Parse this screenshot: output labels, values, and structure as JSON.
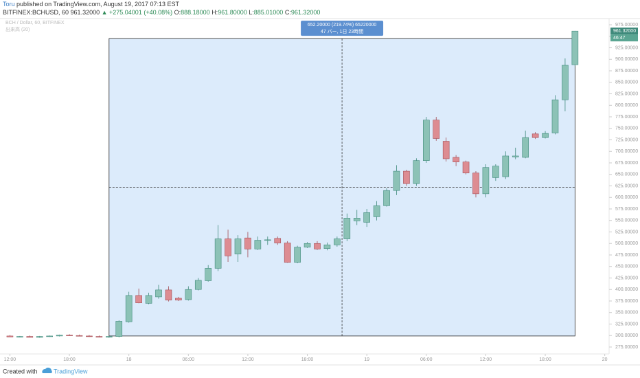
{
  "header": {
    "author": "Toru",
    "byline": "published on TradingView.com, August 19, 2017 07:13 EST",
    "symbol": "BITFINEX:BCHUSD, 60",
    "price": "961.32000",
    "change": "▲ +275.04001 (+40.08%)",
    "ohlc": [
      {
        "label": "O:",
        "value": "888.18000"
      },
      {
        "label": "H:",
        "value": "961.80000"
      },
      {
        "label": "L:",
        "value": "885.01000"
      },
      {
        "label": "C:",
        "value": "961.32000"
      }
    ]
  },
  "legend": {
    "series": "BCH / Dollar, 60, BITFINEX",
    "volume": "出来高 (20)"
  },
  "measure": {
    "line1": "652.20000 (219.74%) 65220000",
    "line2": "47 バー, 1日 23時間",
    "x": [
      10,
      57
    ],
    "y": [
      299,
      945
    ]
  },
  "price_tag": "961.32000",
  "countdown": "46:47",
  "footer": {
    "created": "Created with",
    "brand": "TradingView"
  },
  "chart_data": {
    "type": "candlestick",
    "up_color": "#8cc2b6",
    "up_stroke": "#3f8a7b",
    "down_color": "#dd8c92",
    "down_stroke": "#a34a52",
    "x": [
      0,
      1,
      2,
      3,
      4,
      5,
      6,
      7,
      8,
      9,
      10,
      11,
      12,
      13,
      14,
      15,
      16,
      17,
      18,
      19,
      20,
      21,
      22,
      23,
      24,
      25,
      26,
      27,
      28,
      29,
      30,
      31,
      32,
      33,
      34,
      35,
      36,
      37,
      38,
      39,
      40,
      41,
      42,
      43,
      44,
      45,
      46,
      47,
      48,
      49,
      50,
      51,
      52,
      53,
      54,
      55,
      56,
      57
    ],
    "open": [
      299,
      297,
      298,
      296,
      298,
      299,
      301,
      300,
      299,
      298,
      297,
      298,
      330,
      387,
      370,
      384,
      399,
      381,
      378,
      400,
      419,
      446,
      510,
      477,
      512,
      488,
      507,
      511,
      501,
      459,
      492,
      500,
      489,
      497,
      510,
      549,
      546,
      558,
      582,
      615,
      657,
      630,
      680,
      768,
      722,
      687,
      677,
      653,
      608,
      643,
      645,
      688,
      687,
      738,
      730,
      740,
      812,
      888.18
    ],
    "high": [
      301,
      299,
      300,
      299,
      300,
      302,
      303,
      302,
      301,
      300,
      299,
      333,
      395,
      402,
      393,
      410,
      407,
      384,
      407,
      425,
      453,
      540,
      530,
      518,
      525,
      515,
      515,
      515,
      505,
      495,
      503,
      505,
      502,
      515,
      565,
      573,
      575,
      592,
      620,
      670,
      660,
      685,
      775,
      775,
      730,
      692,
      680,
      657,
      672,
      672,
      700,
      708,
      745,
      742,
      744,
      822,
      902,
      961.8
    ],
    "low": [
      297,
      296,
      296,
      295,
      297,
      298,
      299,
      298,
      297,
      296,
      295,
      296,
      328,
      370,
      368,
      380,
      374,
      375,
      376,
      398,
      417,
      440,
      460,
      460,
      470,
      486,
      497,
      497,
      458,
      457,
      490,
      486,
      485,
      493,
      505,
      540,
      536,
      550,
      580,
      605,
      625,
      625,
      675,
      723,
      678,
      668,
      650,
      600,
      600,
      636,
      640,
      683,
      685,
      727,
      728,
      737,
      787,
      885.01
    ],
    "close": [
      297,
      298,
      296,
      298,
      299,
      301,
      300,
      299,
      298,
      297,
      298,
      331,
      387,
      371,
      387,
      399,
      377,
      377,
      400,
      420,
      446,
      510,
      473,
      510,
      488,
      507,
      508,
      501,
      459,
      492,
      500,
      488,
      497,
      510,
      555,
      555,
      567,
      582,
      615,
      657,
      630,
      680,
      768,
      728,
      684,
      677,
      653,
      608,
      665,
      668,
      690,
      690,
      730,
      730,
      739,
      812,
      887,
      961.32
    ],
    "xlim": [
      -1,
      60.3
    ],
    "ylim": [
      260,
      987
    ],
    "xticks": [
      {
        "value": 0,
        "label": "12:00"
      },
      {
        "value": 6,
        "label": "18:00"
      },
      {
        "value": 12,
        "label": "18"
      },
      {
        "value": 18,
        "label": "06:00"
      },
      {
        "value": 24,
        "label": "12:00"
      },
      {
        "value": 30,
        "label": "18:00"
      },
      {
        "value": 36,
        "label": "19"
      },
      {
        "value": 42,
        "label": "06:00"
      },
      {
        "value": 48,
        "label": "12:00"
      },
      {
        "value": 54,
        "label": "18:00"
      },
      {
        "value": 60,
        "label": "20"
      }
    ],
    "yticks": [
      {
        "value": 975,
        "label": "975.00000"
      },
      {
        "value": 950,
        "label": "950.00000"
      },
      {
        "value": 925,
        "label": "925.00000"
      },
      {
        "value": 900,
        "label": "900.00000"
      },
      {
        "value": 875,
        "label": "875.00000"
      },
      {
        "value": 850,
        "label": "850.00000"
      },
      {
        "value": 825,
        "label": "825.00000"
      },
      {
        "value": 800,
        "label": "800.00000"
      },
      {
        "value": 775,
        "label": "775.00000"
      },
      {
        "value": 750,
        "label": "750.00000"
      },
      {
        "value": 725,
        "label": "725.00000"
      },
      {
        "value": 700,
        "label": "700.00000"
      },
      {
        "value": 675,
        "label": "675.00000"
      },
      {
        "value": 650,
        "label": "650.00000"
      },
      {
        "value": 625,
        "label": "625.00000"
      },
      {
        "value": 600,
        "label": "600.00000"
      },
      {
        "value": 575,
        "label": "575.00000"
      },
      {
        "value": 550,
        "label": "550.00000"
      },
      {
        "value": 525,
        "label": "525.00000"
      },
      {
        "value": 500,
        "label": "500.00000"
      },
      {
        "value": 475,
        "label": "475.00000"
      },
      {
        "value": 450,
        "label": "450.00000"
      },
      {
        "value": 425,
        "label": "425.00000"
      },
      {
        "value": 400,
        "label": "400.00000"
      },
      {
        "value": 375,
        "label": "375.00000"
      },
      {
        "value": 350,
        "label": "350.00000"
      },
      {
        "value": 325,
        "label": "325.00000"
      },
      {
        "value": 300,
        "label": "300.00000"
      },
      {
        "value": 275,
        "label": "275.00000"
      }
    ]
  }
}
